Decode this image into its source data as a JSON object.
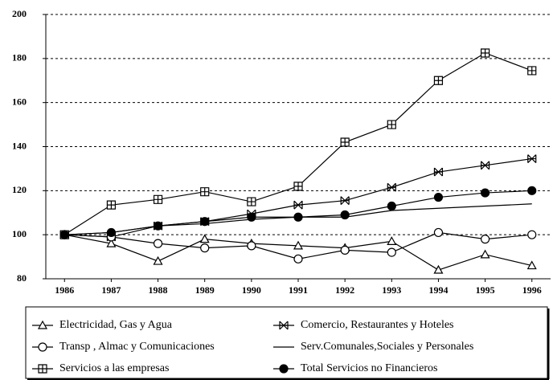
{
  "chart_data": {
    "type": "line",
    "x": [
      1986,
      1987,
      1988,
      1989,
      1990,
      1991,
      1992,
      1993,
      1994,
      1995,
      1996
    ],
    "xlim": [
      1985.6,
      1996.4
    ],
    "xticks": [
      1986,
      1987,
      1988,
      1989,
      1990,
      1991,
      1992,
      1993,
      1994,
      1995,
      1996
    ],
    "ylim": [
      80,
      200
    ],
    "yticks": [
      80,
      100,
      120,
      140,
      160,
      180,
      200
    ],
    "grid": true,
    "series": [
      {
        "name": "Electricidad, Gas y Agua",
        "color": "#000000",
        "marker": "triangle",
        "values": [
          100,
          96,
          88,
          98,
          96,
          95,
          94,
          97,
          84,
          91,
          86
        ]
      },
      {
        "name": "Comercio, Restaurantes y Hoteles",
        "color": "#000000",
        "marker": "bowtie",
        "values": [
          100,
          99,
          104,
          106,
          109.5,
          113.5,
          115.5,
          121.5,
          128.5,
          131.5,
          134.5
        ]
      },
      {
        "name": "Transp , Almac y Comunicaciones",
        "color": "#000000",
        "marker": "circle",
        "values": [
          100,
          99,
          96,
          94,
          95,
          89,
          93,
          92,
          101,
          98,
          100
        ]
      },
      {
        "name": "Serv.Comunales,Sociales y Personales",
        "color": "#000000",
        "marker": "none",
        "values": [
          100,
          101,
          104,
          105,
          107,
          108,
          108,
          111,
          112,
          113,
          114
        ]
      },
      {
        "name": "Servicios a las empresas",
        "color": "#000000",
        "marker": "square-cross",
        "values": [
          100,
          113.5,
          116,
          119.5,
          115,
          122,
          142,
          150,
          170,
          182.5,
          174.5
        ]
      },
      {
        "name": "Total Servicios no Financieros",
        "color": "#000000",
        "marker": "filled-circle",
        "values": [
          100,
          101,
          104,
          106,
          108,
          108,
          109,
          113,
          117,
          119,
          120
        ]
      }
    ]
  }
}
